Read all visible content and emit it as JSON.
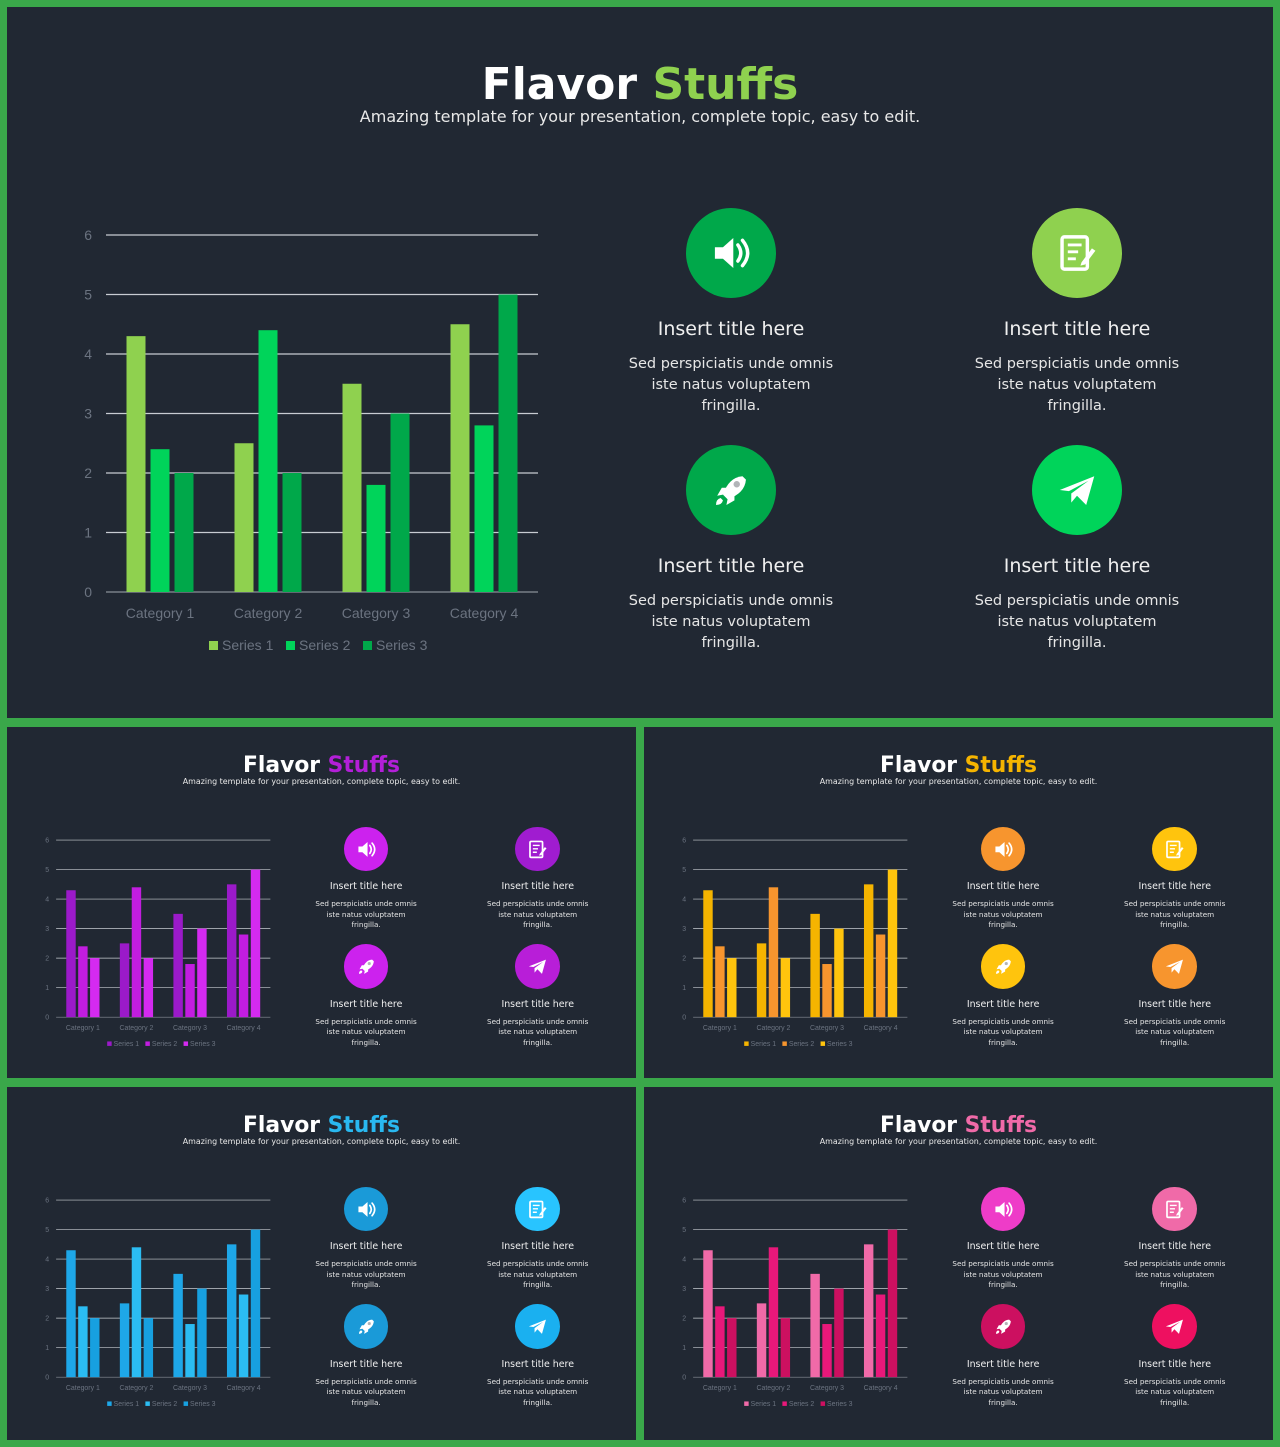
{
  "slides": [
    {
      "title_main": "Flavor",
      "title_accent": "Stuffs",
      "subtitle": "Amazing template for your presentation, complete topic, easy to edit.",
      "accent": "#8fd14f",
      "series_colors": [
        "#8fd14f",
        "#00d45a",
        "#00a84a"
      ],
      "card_colors": [
        "#00a84a",
        "#8fd14f",
        "#00a84a",
        "#00d45a"
      ],
      "cards": [
        {
          "icon": "speaker-icon",
          "title": "Insert title here",
          "desc": "Sed perspiciatis unde omnis iste natus voluptatem fringilla."
        },
        {
          "icon": "notepad-icon",
          "title": "Insert title here",
          "desc": "Sed perspiciatis unde omnis iste natus voluptatem fringilla."
        },
        {
          "icon": "rocket-icon",
          "title": "Insert title here",
          "desc": "Sed perspiciatis unde omnis iste natus voluptatem fringilla."
        },
        {
          "icon": "paper-plane-icon",
          "title": "Insert title here",
          "desc": "Sed perspiciatis unde omnis iste natus voluptatem fringilla."
        }
      ]
    },
    {
      "title_main": "Flavor",
      "title_accent": "Stuffs",
      "subtitle": "Amazing template for your presentation, complete topic, easy to edit.",
      "accent": "#b31fd8",
      "series_colors": [
        "#9b1ac9",
        "#c21de0",
        "#d42af0"
      ],
      "card_colors": [
        "#cc22ee",
        "#a01cd0",
        "#cc22ee",
        "#b81ed8"
      ],
      "cards": [
        {
          "icon": "speaker-icon",
          "title": "Insert title here",
          "desc": "Sed perspiciatis unde omnis iste natus voluptatem fringilla."
        },
        {
          "icon": "notepad-icon",
          "title": "Insert title here",
          "desc": "Sed perspiciatis unde omnis iste natus voluptatem fringilla."
        },
        {
          "icon": "rocket-icon",
          "title": "Insert title here",
          "desc": "Sed perspiciatis unde omnis iste natus voluptatem fringilla."
        },
        {
          "icon": "paper-plane-icon",
          "title": "Insert title here",
          "desc": "Sed perspiciatis unde omnis iste natus voluptatem fringilla."
        }
      ]
    },
    {
      "title_main": "Flavor",
      "title_accent": "Stuffs",
      "subtitle": "Amazing template for your presentation, complete topic, easy to edit.",
      "accent": "#f5b400",
      "series_colors": [
        "#f5b400",
        "#f7952e",
        "#ffc40d"
      ],
      "card_colors": [
        "#f7952e",
        "#ffc40d",
        "#ffc40d",
        "#f7952e"
      ],
      "cards": [
        {
          "icon": "speaker-icon",
          "title": "Insert title here",
          "desc": "Sed perspiciatis unde omnis iste natus voluptatem fringilla."
        },
        {
          "icon": "notepad-icon",
          "title": "Insert title here",
          "desc": "Sed perspiciatis unde omnis iste natus voluptatem fringilla."
        },
        {
          "icon": "rocket-icon",
          "title": "Insert title here",
          "desc": "Sed perspiciatis unde omnis iste natus voluptatem fringilla."
        },
        {
          "icon": "paper-plane-icon",
          "title": "Insert title here",
          "desc": "Sed perspiciatis unde omnis iste natus voluptatem fringilla."
        }
      ]
    },
    {
      "title_main": "Flavor",
      "title_accent": "Stuffs",
      "subtitle": "Amazing template for your presentation, complete topic, easy to edit.",
      "accent": "#29b8f0",
      "series_colors": [
        "#1ea7e8",
        "#2bbcf2",
        "#17a0e0"
      ],
      "card_colors": [
        "#1a9ad8",
        "#28c4ff",
        "#1a9ad8",
        "#1ab0f0"
      ],
      "cards": [
        {
          "icon": "speaker-icon",
          "title": "Insert title here",
          "desc": "Sed perspiciatis unde omnis iste natus voluptatem fringilla."
        },
        {
          "icon": "notepad-icon",
          "title": "Insert title here",
          "desc": "Sed perspiciatis unde omnis iste natus voluptatem fringilla."
        },
        {
          "icon": "rocket-icon",
          "title": "Insert title here",
          "desc": "Sed perspiciatis unde omnis iste natus voluptatem fringilla."
        },
        {
          "icon": "paper-plane-icon",
          "title": "Insert title here",
          "desc": "Sed perspiciatis unde omnis iste natus voluptatem fringilla."
        }
      ]
    },
    {
      "title_main": "Flavor",
      "title_accent": "Stuffs",
      "subtitle": "Amazing template for your presentation, complete topic, easy to edit.",
      "accent": "#f06aa8",
      "series_colors": [
        "#f06aa8",
        "#e8187a",
        "#cc1060"
      ],
      "card_colors": [
        "#ee3cc8",
        "#f06aa8",
        "#cc1060",
        "#ee1060"
      ],
      "cards": [
        {
          "icon": "speaker-icon",
          "title": "Insert title here",
          "desc": "Sed perspiciatis unde omnis iste natus voluptatem fringilla."
        },
        {
          "icon": "notepad-icon",
          "title": "Insert title here",
          "desc": "Sed perspiciatis unde omnis iste natus voluptatem fringilla."
        },
        {
          "icon": "rocket-icon",
          "title": "Insert title here",
          "desc": "Sed perspiciatis unde omnis iste natus voluptatem fringilla."
        },
        {
          "icon": "paper-plane-icon",
          "title": "Insert title here",
          "desc": "Sed perspiciatis unde omnis iste natus voluptatem fringilla."
        }
      ]
    }
  ],
  "chart_data": [
    {
      "type": "bar",
      "categories": [
        "Category 1",
        "Category 2",
        "Category 3",
        "Category 4"
      ],
      "series": [
        {
          "name": "Series 1",
          "values": [
            4.3,
            2.5,
            3.5,
            4.5
          ]
        },
        {
          "name": "Series 2",
          "values": [
            2.4,
            4.4,
            1.8,
            2.8
          ]
        },
        {
          "name": "Series 3",
          "values": [
            2.0,
            2.0,
            3.0,
            5.0
          ]
        }
      ],
      "yticks": [
        "0",
        "1",
        "2",
        "3",
        "4",
        "5",
        "6"
      ],
      "ylim": [
        0,
        6
      ],
      "grid": true,
      "legend": "bottom"
    },
    {
      "type": "bar",
      "categories": [
        "Category 1",
        "Category 2",
        "Category 3",
        "Category 4"
      ],
      "series": [
        {
          "name": "Series 1",
          "values": [
            4.3,
            2.5,
            3.5,
            4.5
          ]
        },
        {
          "name": "Series 2",
          "values": [
            2.4,
            4.4,
            1.8,
            2.8
          ]
        },
        {
          "name": "Series 3",
          "values": [
            2.0,
            2.0,
            3.0,
            5.0
          ]
        }
      ],
      "yticks": [
        "0",
        "1",
        "2",
        "3",
        "4",
        "5",
        "6"
      ],
      "ylim": [
        0,
        6
      ],
      "grid": true,
      "legend": "bottom"
    },
    {
      "type": "bar",
      "categories": [
        "Category 1",
        "Category 2",
        "Category 3",
        "Category 4"
      ],
      "series": [
        {
          "name": "Series 1",
          "values": [
            4.3,
            2.5,
            3.5,
            4.5
          ]
        },
        {
          "name": "Series 2",
          "values": [
            2.4,
            4.4,
            1.8,
            2.8
          ]
        },
        {
          "name": "Series 3",
          "values": [
            2.0,
            2.0,
            3.0,
            5.0
          ]
        }
      ],
      "yticks": [
        "0",
        "1",
        "2",
        "3",
        "4",
        "5",
        "6"
      ],
      "ylim": [
        0,
        6
      ],
      "grid": true,
      "legend": "bottom"
    },
    {
      "type": "bar",
      "categories": [
        "Category 1",
        "Category 2",
        "Category 3",
        "Category 4"
      ],
      "series": [
        {
          "name": "Series 1",
          "values": [
            4.3,
            2.5,
            3.5,
            4.5
          ]
        },
        {
          "name": "Series 2",
          "values": [
            2.4,
            4.4,
            1.8,
            2.8
          ]
        },
        {
          "name": "Series 3",
          "values": [
            2.0,
            2.0,
            3.0,
            5.0
          ]
        }
      ],
      "yticks": [
        "0",
        "1",
        "2",
        "3",
        "4",
        "5",
        "6"
      ],
      "ylim": [
        0,
        6
      ],
      "grid": true,
      "legend": "bottom"
    },
    {
      "type": "bar",
      "categories": [
        "Category 1",
        "Category 2",
        "Category 3",
        "Category 4"
      ],
      "series": [
        {
          "name": "Series 1",
          "values": [
            4.3,
            2.5,
            3.5,
            4.5
          ]
        },
        {
          "name": "Series 2",
          "values": [
            2.4,
            4.4,
            1.8,
            2.8
          ]
        },
        {
          "name": "Series 3",
          "values": [
            2.0,
            2.0,
            3.0,
            5.0
          ]
        }
      ],
      "yticks": [
        "0",
        "1",
        "2",
        "3",
        "4",
        "5",
        "6"
      ],
      "ylim": [
        0,
        6
      ],
      "grid": true,
      "legend": "bottom"
    }
  ]
}
